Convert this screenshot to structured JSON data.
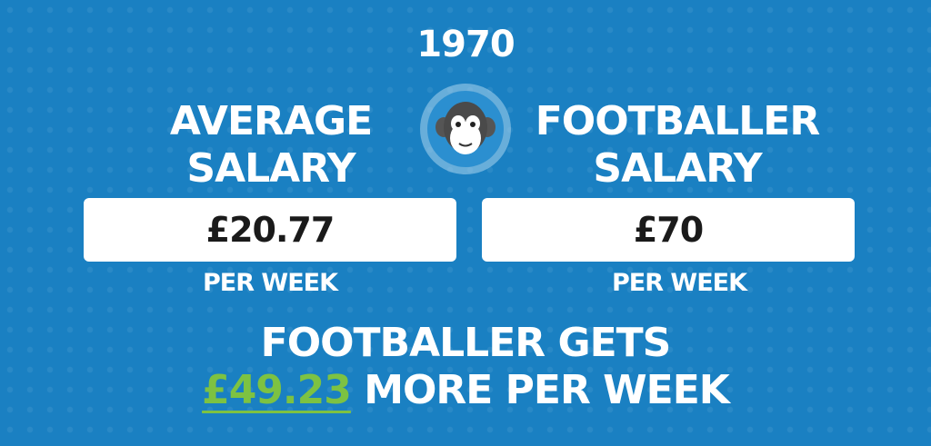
{
  "year": "1970",
  "left": {
    "title_lines": [
      "AVERAGE",
      "SALARY"
    ],
    "amount": "£20.77",
    "period": "PER WEEK"
  },
  "right": {
    "title_lines": [
      "FOOTBALLER",
      "SALARY"
    ],
    "amount": "£70",
    "period": "PER WEEK"
  },
  "summary": {
    "line1": "FOOTBALLER GETS",
    "difference": "£49.23",
    "line2_rest": "MORE PER WEEK"
  }
}
